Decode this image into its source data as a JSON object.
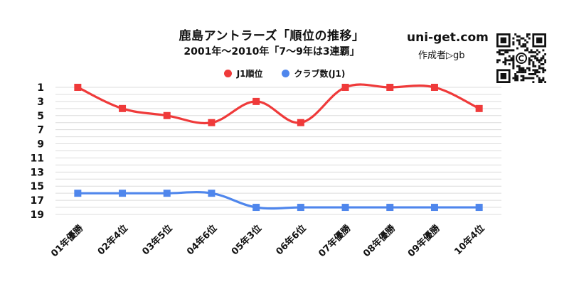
{
  "header": {
    "title": "鹿島アントラーズ「順位の推移」",
    "subtitle": "2001年～2010年「7～9年は3連覇」",
    "site": "uni-get.com",
    "author": "作成者▷gb"
  },
  "qr": {
    "icon": "qr-code-icon",
    "center_icon": "copyright-icon"
  },
  "chart_data": {
    "type": "line",
    "categories": [
      "01年優勝",
      "02年4位",
      "03年5位",
      "04年6位",
      "05年3位",
      "06年6位",
      "07年優勝",
      "08年優勝",
      "09年優勝",
      "10年4位"
    ],
    "series": [
      {
        "name": "J1順位",
        "color": "#ef3a3a",
        "marker": "square",
        "values": [
          1,
          4,
          5,
          6,
          3,
          6,
          1,
          1,
          1,
          4
        ]
      },
      {
        "name": "クラブ数(J1)",
        "color": "#4f86ec",
        "marker": "square",
        "values": [
          16,
          16,
          16,
          16,
          18,
          18,
          18,
          18,
          18,
          18
        ]
      }
    ],
    "y_axis": {
      "reversed": true,
      "min": 1,
      "max": 19,
      "ticks": [
        1,
        3,
        5,
        7,
        9,
        11,
        13,
        15,
        17,
        19
      ]
    },
    "grid": true,
    "gridline_step": 1,
    "legend_position": "top-center",
    "x_label_rotation": -45
  }
}
